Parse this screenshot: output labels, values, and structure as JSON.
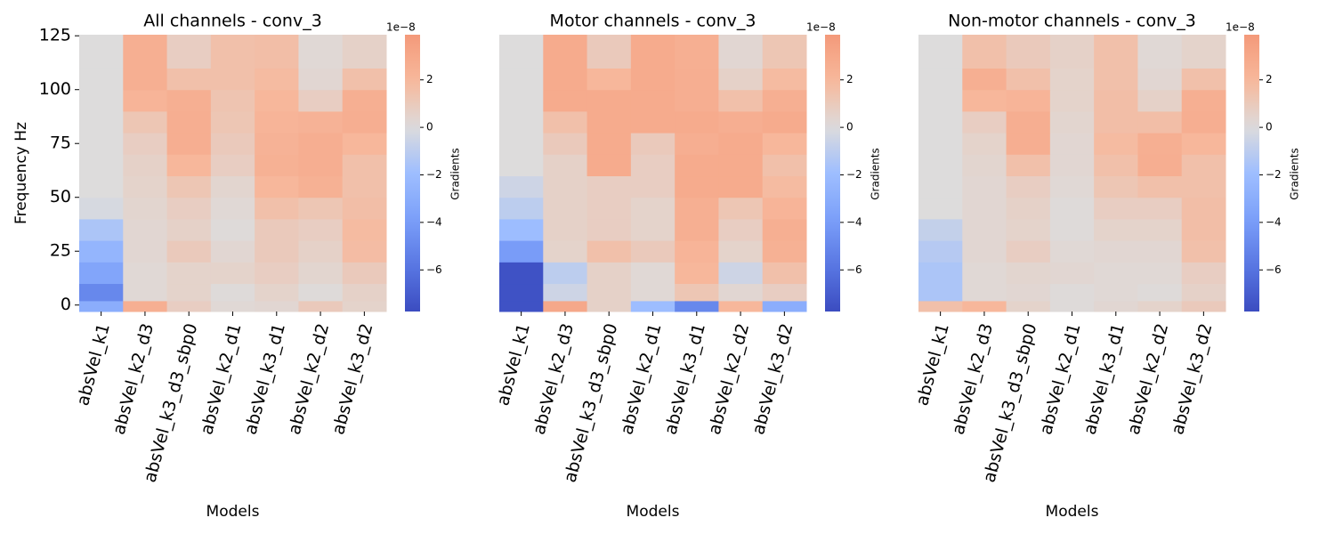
{
  "chart_data": [
    {
      "type": "heatmap",
      "title": "All channels - conv_3",
      "xlabel": "Models",
      "ylabel": "Frequency Hz",
      "categories": [
        "absVel_k1",
        "absVel_k2_d3",
        "absVel_k3_d3_sbp0",
        "absVel_k2_d1",
        "absVel_k3_d1",
        "absVel_k2_d2",
        "absVel_k3_d2"
      ],
      "ybins": [
        -3,
        2,
        10,
        20,
        30,
        40,
        50,
        60,
        70,
        80,
        90,
        100,
        110,
        125.5
      ],
      "ylim": [
        -3,
        125.5
      ],
      "yticks": [
        0,
        25,
        50,
        75,
        100,
        125
      ],
      "z": [
        [
          -3,
          2.5,
          0.8,
          0.2,
          0.3,
          1,
          0.5
        ],
        [
          -5,
          0.2,
          0.5,
          0.1,
          0.5,
          0.1,
          0.6
        ],
        [
          -3.5,
          0.2,
          0.5,
          0.5,
          0.8,
          0.4,
          1
        ],
        [
          -2.5,
          0.3,
          1,
          0.3,
          1,
          0.6,
          1.7
        ],
        [
          -1.5,
          0.3,
          0.6,
          0.1,
          1,
          0.8,
          1.8
        ],
        [
          -0.2,
          0.4,
          0.8,
          0.2,
          1.5,
          1.2,
          1.6
        ],
        [
          0,
          0.5,
          1.2,
          0.4,
          2,
          2.4,
          1.5
        ],
        [
          0,
          0.6,
          2,
          0.8,
          2.4,
          2.6,
          1.5
        ],
        [
          0,
          0.8,
          2.6,
          1,
          2.3,
          2.6,
          2
        ],
        [
          0,
          1.2,
          2.6,
          1.2,
          2.2,
          2.3,
          2.6
        ],
        [
          0,
          2.2,
          2.5,
          1.3,
          2,
          0.8,
          2.5
        ],
        [
          0,
          2.5,
          1.5,
          1.5,
          1.8,
          0.3,
          1.5
        ],
        [
          0,
          2.5,
          0.8,
          1.5,
          1.6,
          0.2,
          0.6
        ]
      ],
      "colormap": "coolwarm",
      "center": 0,
      "clim": [
        -7.75,
        3.9
      ],
      "cticks": [
        {
          "value": -6,
          "label": "−6"
        },
        {
          "value": -4,
          "label": "−4"
        },
        {
          "value": -2,
          "label": "−2"
        },
        0,
        2
      ],
      "colorbar_label": "Gradients",
      "colorbar_offset": "1e−8"
    },
    {
      "type": "heatmap",
      "title": "Motor channels - conv_3",
      "xlabel": "Models",
      "categories": [
        "absVel_k1",
        "absVel_k2_d3",
        "absVel_k3_d3_sbp0",
        "absVel_k2_d1",
        "absVel_k3_d1",
        "absVel_k2_d2",
        "absVel_k3_d2"
      ],
      "ybins": [
        -3,
        2,
        10,
        20,
        30,
        40,
        50,
        60,
        70,
        80,
        90,
        100,
        110,
        125.5
      ],
      "ylim": [
        -3,
        125.5
      ],
      "z": [
        [
          -7.5,
          3,
          0.6,
          -2,
          -5,
          2,
          -3
        ],
        [
          -7.5,
          -0.5,
          0.6,
          0.2,
          1.2,
          0.3,
          0.8
        ],
        [
          -7.5,
          -1,
          0.6,
          0.2,
          2,
          -0.5,
          1.5
        ],
        [
          -4,
          0.5,
          1.5,
          1,
          2.2,
          0.5,
          2.4
        ],
        [
          -2,
          0.6,
          0.8,
          0.5,
          2.5,
          0.8,
          2.5
        ],
        [
          -1,
          0.6,
          0.8,
          0.5,
          2.5,
          1.2,
          2.2
        ],
        [
          -0.5,
          0.6,
          0.8,
          0.8,
          2.8,
          2.8,
          1.8
        ],
        [
          0,
          0.6,
          2.8,
          0.8,
          2.8,
          2.8,
          1.5
        ],
        [
          0,
          1,
          2.8,
          1,
          2.6,
          2.8,
          2
        ],
        [
          0,
          1.5,
          2.8,
          2.8,
          2.8,
          2.6,
          2.8
        ],
        [
          0,
          2.8,
          2.8,
          2.8,
          2.6,
          1.5,
          2.5
        ],
        [
          0,
          2.8,
          2,
          2.8,
          2.6,
          0.6,
          1.8
        ],
        [
          0,
          2.8,
          1,
          2.8,
          2.5,
          0.3,
          1.2
        ]
      ],
      "colormap": "coolwarm",
      "center": 0,
      "clim": [
        -7.75,
        3.9
      ],
      "cticks": [
        {
          "value": -6,
          "label": "−6"
        },
        {
          "value": -4,
          "label": "−4"
        },
        {
          "value": -2,
          "label": "−2"
        },
        0,
        2
      ],
      "colorbar_label": "Gradients",
      "colorbar_offset": "1e−8"
    },
    {
      "type": "heatmap",
      "title": "Non-motor channels - conv_3",
      "xlabel": "Models",
      "categories": [
        "absVel_k1",
        "absVel_k2_d3",
        "absVel_k3_d3_sbp0",
        "absVel_k2_d1",
        "absVel_k3_d1",
        "absVel_k2_d2",
        "absVel_k3_d2"
      ],
      "ybins": [
        -3,
        2,
        10,
        20,
        30,
        40,
        50,
        60,
        70,
        80,
        90,
        100,
        110,
        125.5
      ],
      "ylim": [
        -3,
        125.5
      ],
      "z": [
        [
          1.5,
          2,
          0.5,
          0.1,
          0.3,
          0.5,
          1
        ],
        [
          -1.5,
          0.2,
          0.3,
          0.1,
          0.2,
          0.1,
          0.6
        ],
        [
          -1.5,
          0.2,
          0.4,
          0.3,
          0.2,
          0.2,
          0.8
        ],
        [
          -1.2,
          0.3,
          0.8,
          0.2,
          0.3,
          0.3,
          1.5
        ],
        [
          -0.8,
          0.3,
          0.5,
          0.1,
          0.5,
          0.5,
          1.6
        ],
        [
          0,
          0.3,
          0.6,
          0.1,
          0.8,
          0.8,
          1.6
        ],
        [
          0,
          0.3,
          0.8,
          0.2,
          1.2,
          1.5,
          1.5
        ],
        [
          0,
          0.4,
          1.5,
          0.3,
          1.5,
          2.6,
          1.5
        ],
        [
          0,
          0.5,
          2.6,
          0.3,
          1.8,
          2.5,
          2
        ],
        [
          0,
          0.8,
          2.6,
          0.4,
          1.6,
          1.6,
          2.6
        ],
        [
          0,
          2,
          2.2,
          0.5,
          1.6,
          0.6,
          2.5
        ],
        [
          0,
          2.5,
          1.5,
          0.5,
          1.5,
          0.3,
          1.5
        ],
        [
          0,
          1.5,
          1,
          0.6,
          1.5,
          0.2,
          0.5
        ]
      ],
      "colormap": "coolwarm",
      "center": 0,
      "clim": [
        -7.75,
        3.9
      ],
      "cticks": [
        {
          "value": -6,
          "label": "−6"
        },
        {
          "value": -4,
          "label": "−4"
        },
        {
          "value": -2,
          "label": "−2"
        },
        0,
        2
      ],
      "colorbar_label": "Gradients",
      "colorbar_offset": "1e−8"
    }
  ]
}
